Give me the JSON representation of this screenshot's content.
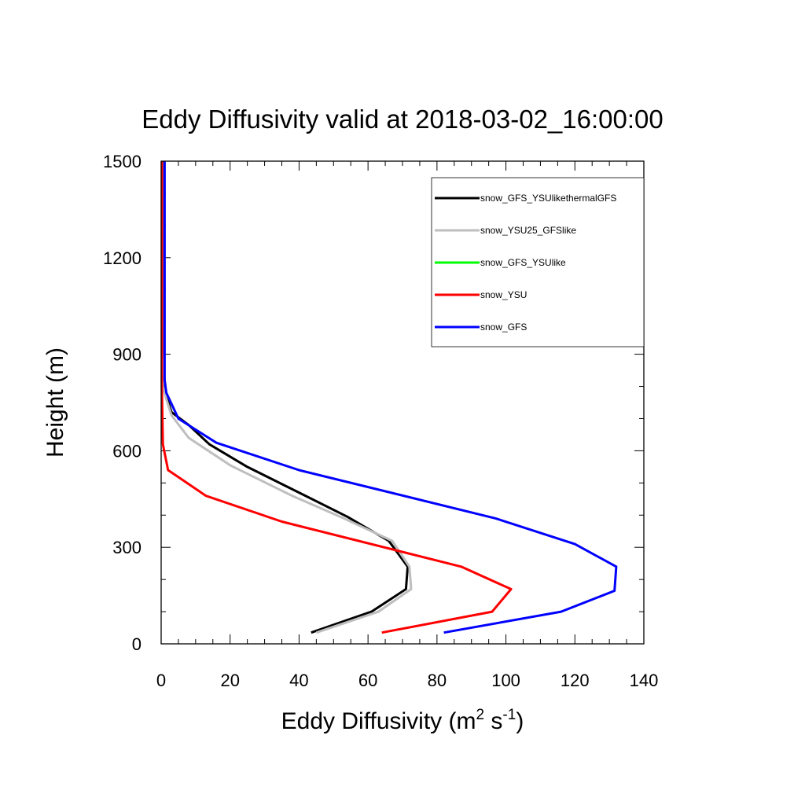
{
  "chart_data": {
    "type": "line",
    "title": "Eddy Diffusivity valid at 2018-03-02_16:00:00",
    "xlabel": "Eddy Diffusivity (m",
    "xlabel_sup1": "2",
    "xlabel_mid": " s",
    "xlabel_sup2": "-1",
    "xlabel_end": ")",
    "ylabel": "Height (m)",
    "xlim": [
      0,
      140
    ],
    "ylim": [
      0,
      1500
    ],
    "xticks": [
      "0",
      "20",
      "40",
      "60",
      "80",
      "100",
      "120",
      "140"
    ],
    "yticks": [
      "0",
      "300",
      "600",
      "900",
      "1200",
      "1500"
    ],
    "legend_position": "top-right",
    "series": [
      {
        "name": "snow_GFS_YSUlikethermalGFS",
        "color": "#000000",
        "x": [
          43.5,
          61,
          71,
          71.5,
          66,
          54,
          40,
          25,
          14,
          8,
          3,
          1.5,
          0.8,
          0.5,
          0.5,
          0.5
        ],
        "y": [
          35,
          100,
          170,
          240,
          320,
          395,
          470,
          550,
          620,
          680,
          720,
          770,
          800,
          900,
          1200,
          1500
        ]
      },
      {
        "name": "snow_YSU25_GFSlike",
        "color": "#bebebe",
        "x": [
          45,
          63,
          72.5,
          72,
          67,
          53,
          38,
          20,
          8,
          3,
          1.5,
          0.5,
          0.3,
          0.3,
          0.3
        ],
        "y": [
          35,
          100,
          170,
          240,
          320,
          390,
          460,
          555,
          640,
          710,
          760,
          800,
          900,
          1200,
          1500
        ]
      },
      {
        "name": "snow_GFS_YSUlike",
        "color": "#00ff00",
        "x": [],
        "y": []
      },
      {
        "name": "snow_YSU",
        "color": "#ff0000",
        "x": [
          64,
          96,
          101.5,
          87,
          35,
          13,
          2,
          0.5,
          0.2,
          0.2,
          0.2
        ],
        "y": [
          35,
          100,
          170,
          240,
          380,
          460,
          540,
          620,
          800,
          1000,
          1500
        ]
      },
      {
        "name": "snow_GFS",
        "color": "#0000ff",
        "x": [
          82,
          116,
          131.5,
          132,
          120,
          97,
          40,
          16,
          5,
          1.5,
          1,
          1,
          1,
          1
        ],
        "y": [
          35,
          100,
          165,
          240,
          310,
          390,
          540,
          625,
          700,
          780,
          820,
          900,
          1200,
          1500
        ]
      }
    ]
  }
}
